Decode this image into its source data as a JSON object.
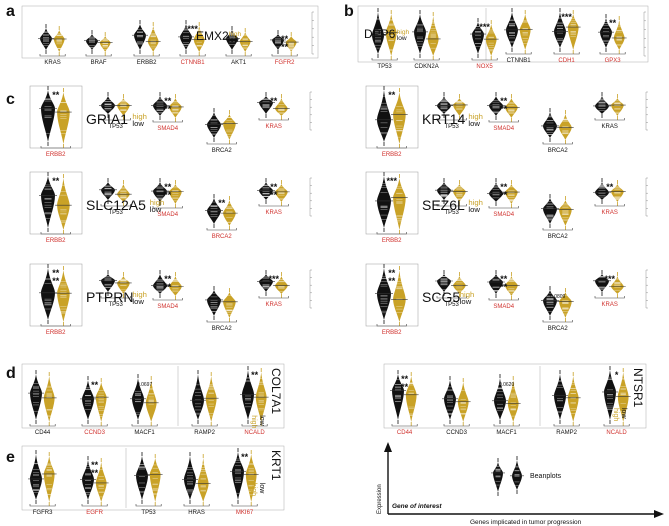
{
  "colors": {
    "high": "#111111",
    "low": "#c9a227",
    "red": "#d0312d",
    "text": "#111111"
  },
  "panels": [
    {
      "id": "a",
      "letter": "a",
      "gene": "EMX2",
      "label_high": "high",
      "label_low": "low",
      "groups": [
        {
          "genes": [
            "KRAS",
            "BRAF",
            "ERBB2",
            "CTNNB1",
            "AKT1",
            "FGFR2"
          ],
          "pairs": [
            {
              "gene": "KRAS",
              "red": false,
              "sig": ""
            },
            {
              "gene": "BRAF",
              "red": false,
              "sig": ""
            },
            {
              "gene": "ERBB2",
              "red": false,
              "sig": ""
            },
            {
              "gene": "CTNNB1",
              "red": true,
              "sig": "***"
            },
            {
              "gene": "AKT1",
              "red": false,
              "sig": ""
            },
            {
              "gene": "FGFR2",
              "red": true,
              "sig": "**\n**"
            }
          ]
        }
      ]
    },
    {
      "id": "b",
      "letter": "b",
      "gene": "DPP6",
      "label_high": "high",
      "label_low": "low",
      "groups": [
        {
          "genes": [
            "TP53",
            "CDKN2A",
            "NOX5"
          ],
          "pairs": [
            {
              "gene": "TP53",
              "red": false,
              "sig": ""
            },
            {
              "gene": "CDKN2A",
              "red": false,
              "sig": ""
            },
            {
              "gene": "NOX5",
              "red": true,
              "sig": "***"
            }
          ]
        },
        {
          "genes": [
            "CTNNB1",
            "CDH1",
            "GPX3"
          ],
          "pairs": [
            {
              "gene": "CTNNB1",
              "red": false,
              "sig": ""
            },
            {
              "gene": "CDH1",
              "red": true,
              "sig": "***"
            },
            {
              "gene": "GPX3",
              "red": true,
              "sig": "**"
            }
          ]
        }
      ]
    },
    {
      "id": "c1",
      "letter": "c",
      "gene": "GRIA1",
      "label_high": "high",
      "label_low": "low",
      "pairs": [
        {
          "gene": "ERBB2",
          "red": true,
          "sig": "**"
        },
        {
          "gene": "TP53",
          "red": false,
          "sig": ""
        },
        {
          "gene": "SMAD4",
          "red": true,
          "sig": "**\n**"
        },
        {
          "gene": "BRCA2",
          "red": false,
          "sig": ""
        },
        {
          "gene": "KRAS",
          "red": true,
          "sig": "**"
        }
      ]
    },
    {
      "id": "c2",
      "gene": "KRT14",
      "label_high": "high",
      "label_low": "low",
      "pairs": [
        {
          "gene": "ERBB2",
          "red": true,
          "sig": "**"
        },
        {
          "gene": "TP53",
          "red": false,
          "sig": ""
        },
        {
          "gene": "SMAD4",
          "red": true,
          "sig": "**\n**"
        },
        {
          "gene": "BRCA2",
          "red": false,
          "sig": ""
        },
        {
          "gene": "KRAS",
          "red": false,
          "sig": ""
        }
      ]
    },
    {
      "id": "c3",
      "gene": "SLC12A5",
      "label_high": "high",
      "label_low": "low",
      "pairs": [
        {
          "gene": "ERBB2",
          "red": true,
          "sig": "**"
        },
        {
          "gene": "TP53",
          "red": false,
          "sig": ""
        },
        {
          "gene": "SMAD4",
          "red": true,
          "sig": "**\n**"
        },
        {
          "gene": "BRCA2",
          "red": true,
          "sig": "**"
        },
        {
          "gene": "KRAS",
          "red": true,
          "sig": "**\n**"
        }
      ]
    },
    {
      "id": "c4",
      "gene": "SEZ6L",
      "label_high": "high",
      "label_low": "low",
      "pairs": [
        {
          "gene": "ERBB2",
          "red": true,
          "sig": "***"
        },
        {
          "gene": "TP53",
          "red": false,
          "sig": ""
        },
        {
          "gene": "SMAD4",
          "red": true,
          "sig": "**\n**"
        },
        {
          "gene": "BRCA2",
          "red": false,
          "sig": ""
        },
        {
          "gene": "KRAS",
          "red": true,
          "sig": "**"
        }
      ]
    },
    {
      "id": "c5",
      "gene": "PTPRN",
      "label_high": "high",
      "label_low": "low",
      "pairs": [
        {
          "gene": "ERBB2",
          "red": true,
          "sig": "**\n**"
        },
        {
          "gene": "TP53",
          "red": false,
          "sig": ""
        },
        {
          "gene": "SMAD4",
          "red": true,
          "sig": "**\n**"
        },
        {
          "gene": "BRCA2",
          "red": false,
          "sig": ""
        },
        {
          "gene": "KRAS",
          "red": true,
          "sig": "***"
        }
      ]
    },
    {
      "id": "c6",
      "gene": "SCG5",
      "label_high": "high",
      "label_low": "low",
      "pairs": [
        {
          "gene": "ERBB2",
          "red": true,
          "sig": "**\n**"
        },
        {
          "gene": "TP53",
          "red": false,
          "sig": ""
        },
        {
          "gene": "SMAD4",
          "red": true,
          "sig": "**\n**"
        },
        {
          "gene": "BRCA2",
          "red": false,
          "sig": "0.0809"
        },
        {
          "gene": "KRAS",
          "red": true,
          "sig": "***"
        }
      ]
    },
    {
      "id": "d1",
      "letter": "d",
      "gene": "COL7A1",
      "label_high": "high",
      "label_low": "low",
      "groups": [
        {
          "genes": [
            "CD44",
            "CCND3",
            "MACF1"
          ],
          "pairs": [
            {
              "gene": "CD44",
              "red": false,
              "sig": ""
            },
            {
              "gene": "CCND3",
              "red": true,
              "sig": "**"
            },
            {
              "gene": "MACF1",
              "red": false,
              "sig": "0.0697"
            }
          ]
        },
        {
          "genes": [
            "RAMP2",
            "NCALD"
          ],
          "pairs": [
            {
              "gene": "RAMP2",
              "red": false,
              "sig": ""
            },
            {
              "gene": "NCALD",
              "red": true,
              "sig": "**"
            }
          ]
        }
      ]
    },
    {
      "id": "d2",
      "gene": "NTSR1",
      "label_high": "high",
      "label_low": "low",
      "groups": [
        {
          "genes": [
            "CD44",
            "CCND3",
            "MACF1"
          ],
          "pairs": [
            {
              "gene": "CD44",
              "red": true,
              "sig": "**\n**"
            },
            {
              "gene": "CCND3",
              "red": false,
              "sig": ""
            },
            {
              "gene": "MACF1",
              "red": false,
              "sig": "0.0620"
            }
          ]
        },
        {
          "genes": [
            "RAMP2",
            "NCALD"
          ],
          "pairs": [
            {
              "gene": "RAMP2",
              "red": false,
              "sig": ""
            },
            {
              "gene": "NCALD",
              "red": true,
              "sig": "*"
            }
          ]
        }
      ]
    },
    {
      "id": "e",
      "letter": "e",
      "gene": "KRT1",
      "label_high": "high",
      "label_low": "low",
      "groups": [
        {
          "genes": [
            "FGFR3",
            "EGFR"
          ],
          "pairs": [
            {
              "gene": "FGFR3",
              "red": false,
              "sig": ""
            },
            {
              "gene": "EGFR",
              "red": true,
              "sig": "**\n**"
            }
          ]
        },
        {
          "genes": [
            "TP53",
            "HRAS",
            "MKI67"
          ],
          "pairs": [
            {
              "gene": "TP53",
              "red": false,
              "sig": ""
            },
            {
              "gene": "HRAS",
              "red": false,
              "sig": ""
            },
            {
              "gene": "MKI67",
              "red": true,
              "sig": "**"
            }
          ]
        }
      ]
    }
  ],
  "legend": {
    "y_axis": "Expression",
    "gene_of_interest": "Gene of interest",
    "x_axis": "Genes implicated in tumor progression",
    "beanplots": "Beanplots"
  }
}
